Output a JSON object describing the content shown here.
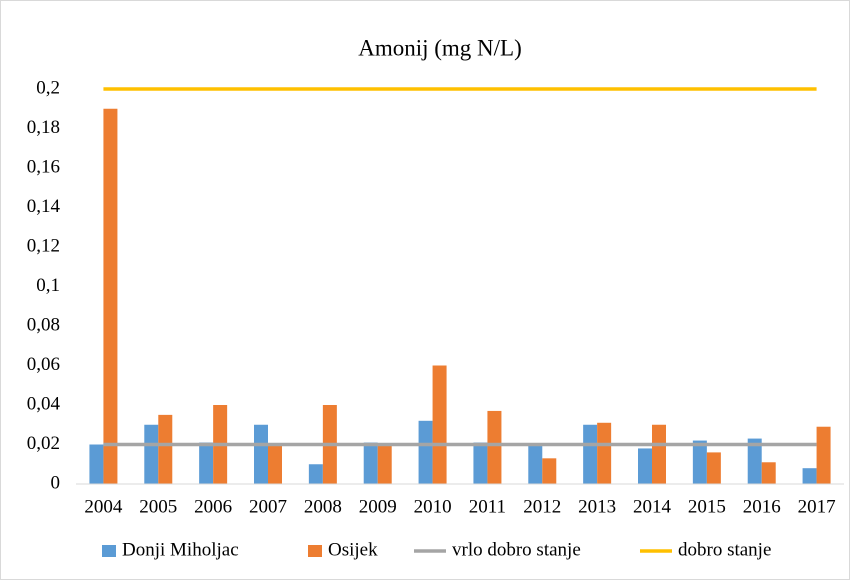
{
  "chart_data": {
    "type": "bar",
    "title": "Amonij (mg N/L)",
    "categories": [
      "2004",
      "2005",
      "2006",
      "2007",
      "2008",
      "2009",
      "2010",
      "2011",
      "2012",
      "2013",
      "2014",
      "2015",
      "2016",
      "2017"
    ],
    "series": [
      {
        "name": "Donji Miholjac",
        "type": "bar",
        "color": "#5b9bd5",
        "values": [
          0.02,
          0.03,
          0.021,
          0.03,
          0.01,
          0.021,
          0.032,
          0.021,
          0.02,
          0.03,
          0.018,
          0.022,
          0.023,
          0.008
        ]
      },
      {
        "name": "Osijek",
        "type": "bar",
        "color": "#ed7d31",
        "values": [
          0.19,
          0.035,
          0.04,
          0.02,
          0.04,
          0.02,
          0.06,
          0.037,
          0.013,
          0.031,
          0.03,
          0.016,
          0.011,
          0.029
        ]
      },
      {
        "name": "vrlo dobro stanje",
        "type": "line",
        "color": "#a5a5a5",
        "values": [
          0.02,
          0.02,
          0.02,
          0.02,
          0.02,
          0.02,
          0.02,
          0.02,
          0.02,
          0.02,
          0.02,
          0.02,
          0.02,
          0.02
        ]
      },
      {
        "name": "dobro stanje",
        "type": "line",
        "color": "#ffc000",
        "values": [
          0.2,
          0.2,
          0.2,
          0.2,
          0.2,
          0.2,
          0.2,
          0.2,
          0.2,
          0.2,
          0.2,
          0.2,
          0.2,
          0.2
        ]
      }
    ],
    "ylim": [
      0,
      0.2
    ],
    "yticks": [
      0,
      {
        "value": 0.02,
        "label": "0,02"
      },
      {
        "value": 0.04,
        "label": "0,04"
      },
      {
        "value": 0.06,
        "label": "0,06"
      },
      {
        "value": 0.08,
        "label": "0,08"
      },
      {
        "value": 0.1,
        "label": "0,1"
      },
      {
        "value": 0.12,
        "label": "0,12"
      },
      {
        "value": 0.14,
        "label": "0,14"
      },
      {
        "value": 0.16,
        "label": "0,16"
      },
      {
        "value": 0.18,
        "label": "0,18"
      },
      {
        "value": 0.2,
        "label": "0,2"
      }
    ],
    "grid": false,
    "legend": "bottom"
  }
}
